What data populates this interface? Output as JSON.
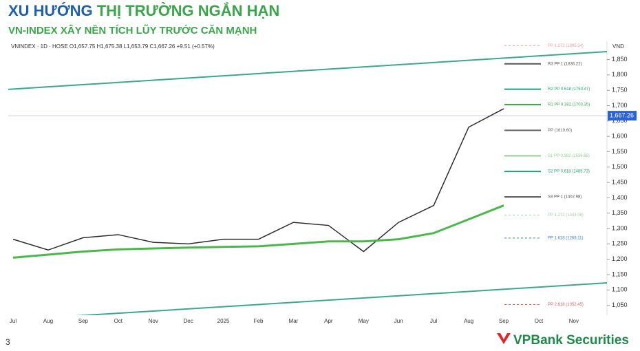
{
  "header": {
    "title_lead": "XU HƯỚNG",
    "title_rest": "THỊ TRƯỜNG NGẮN HẠN",
    "subtitle": "VN-INDEX XÂY NỀN TÍCH LŨY TRƯỚC CĂN MẠNH"
  },
  "chart_data": {
    "type": "line",
    "symbol_line": "VNINDEX · 1D · HOSE  O1,657.75  H1,675.38  L1,653.79  C1,667.26  +9.51 (+0.57%)",
    "currency": "VND",
    "categories": [
      "Jul",
      "Aug",
      "Sep",
      "Oct",
      "Nov",
      "Dec",
      "2025",
      "Feb",
      "Mar",
      "Apr",
      "May",
      "Jun",
      "Jul",
      "Aug",
      "Sep",
      "Oct",
      "Nov"
    ],
    "series": [
      {
        "color": "#2b2b2b",
        "values": [
          1265,
          1230,
          1270,
          1280,
          1255,
          1250,
          1265,
          1265,
          1320,
          1310,
          1225,
          1320,
          1375,
          1630,
          1690,
          null,
          null
        ]
      },
      {
        "color": "#49b84a",
        "values": [
          1205,
          1215,
          1225,
          1232,
          1235,
          1238,
          1240,
          1242,
          1250,
          1258,
          1258,
          1265,
          1285,
          1330,
          1375,
          null,
          null
        ]
      }
    ],
    "last_price": {
      "value": 1667.26,
      "label": "1,667.26"
    },
    "channels": [
      {
        "color": "#3aa88a",
        "values": [
          1753,
          1876
        ]
      },
      {
        "color": "#3aa88a",
        "values": [
          1002,
          1123
        ]
      }
    ],
    "levels": [
      {
        "value": 1895.34,
        "label": "PP 1.272 (1895.34)",
        "color": "#e8a0a0",
        "dashed": true
      },
      {
        "value": 1836.22,
        "label": "R3 PP 1 (1836.22)",
        "color": "#555555",
        "dashed": false
      },
      {
        "value": 1753.47,
        "label": "R2 PP 0.618 (1753.47)",
        "color": "#1f9e7a",
        "dashed": false
      },
      {
        "value": 1703.35,
        "label": "R1 PP 0.382 (1703.35)",
        "color": "#3aaa4a",
        "dashed": false
      },
      {
        "value": 1619.6,
        "label": "PP (1619.60)",
        "color": "#666666",
        "dashed": false
      },
      {
        "value": 1536.85,
        "label": "S1 PP 0.382 (1536.85)",
        "color": "#8fd08f",
        "dashed": false
      },
      {
        "value": 1485.73,
        "label": "S2 PP 0.618 (1485.73)",
        "color": "#1f9e7a",
        "dashed": false
      },
      {
        "value": 1402.98,
        "label": "S3 PP 1 (1402.98)",
        "color": "#555555",
        "dashed": false
      },
      {
        "value": 1344.06,
        "label": "PP 1.272 (1344.06)",
        "color": "#9fd0a0",
        "dashed": true
      },
      {
        "value": 1269.11,
        "label": "PP 1.618 (1269.11)",
        "color": "#3a7fd0",
        "dashed": true
      },
      {
        "value": 1052.45,
        "label": "PP 2.618 (1052.45)",
        "color": "#e06060",
        "dashed": true
      }
    ],
    "ylim": [
      1020,
      1905
    ],
    "yticks": [
      {
        "value": 1050,
        "label": "1,050"
      },
      {
        "value": 1100,
        "label": "1,100"
      },
      {
        "value": 1150,
        "label": "1,150"
      },
      {
        "value": 1200,
        "label": "1,200"
      },
      {
        "value": 1250,
        "label": "1,250"
      },
      {
        "value": 1300,
        "label": "1,300"
      },
      {
        "value": 1350,
        "label": "1,350"
      },
      {
        "value": 1400,
        "label": "1,400"
      },
      {
        "value": 1450,
        "label": "1,450"
      },
      {
        "value": 1500,
        "label": "1,500"
      },
      {
        "value": 1550,
        "label": "1,550"
      },
      {
        "value": 1600,
        "label": "1,600"
      },
      {
        "value": 1650,
        "label": "1,650"
      },
      {
        "value": 1700,
        "label": "1,700"
      },
      {
        "value": 1750,
        "label": "1,750"
      },
      {
        "value": 1800,
        "label": "1,800"
      },
      {
        "value": 1850,
        "label": "1,850"
      }
    ]
  },
  "footer": {
    "page": "3",
    "brand": "VPBank Securities"
  }
}
